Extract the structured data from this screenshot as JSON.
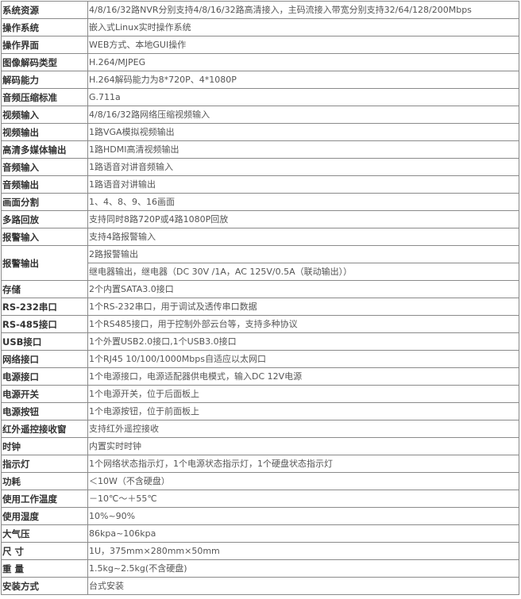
{
  "specs": [
    {
      "label": "系统资源",
      "values": [
        "4/8/16/32路NVR分别支持4/8/16/32路高清接入，主码流接入带宽分别支持32/64/128/200Mbps"
      ]
    },
    {
      "label": "操作系统",
      "values": [
        "嵌入式Linux实时操作系统"
      ]
    },
    {
      "label": "操作界面",
      "values": [
        "WEB方式、本地GUI操作"
      ]
    },
    {
      "label": "图像解码类型",
      "values": [
        "H.264/MJPEG"
      ]
    },
    {
      "label": "解码能力",
      "values": [
        "H.264解码能力为8*720P、4*1080P"
      ]
    },
    {
      "label": "音频压缩标准",
      "values": [
        "G.711a"
      ]
    },
    {
      "label": "视频输入",
      "values": [
        "4/8/16/32路网络压缩视频输入"
      ]
    },
    {
      "label": "视频输出",
      "values": [
        "1路VGA模拟视频输出"
      ]
    },
    {
      "label": "高清多媒体输出",
      "values": [
        "1路HDMI高清视频输出"
      ]
    },
    {
      "label": "音频输入",
      "values": [
        "1路语音对讲音频输入"
      ]
    },
    {
      "label": "音频输出",
      "values": [
        "1路语音对讲输出"
      ]
    },
    {
      "label": "画面分割",
      "values": [
        "1、4、8、9、16画面"
      ]
    },
    {
      "label": "多路回放",
      "values": [
        "支持同时8路720P或4路1080P回放"
      ]
    },
    {
      "label": "报警输入",
      "values": [
        "支持4路报警输入"
      ]
    },
    {
      "label": "报警输出",
      "values": [
        "2路报警输出",
        "继电器输出，继电器（DC 30V /1A，AC 125V/0.5A（联动输出））"
      ]
    },
    {
      "label": "存储",
      "values": [
        "2个内置SATA3.0接口"
      ]
    },
    {
      "label": "RS-232串口",
      "values": [
        "1个RS-232串口，用于调试及透传串口数据"
      ]
    },
    {
      "label": "RS-485接口",
      "values": [
        "1个RS485接口，用于控制外部云台等，支持多种协议"
      ]
    },
    {
      "label": "USB接口",
      "values": [
        "1个外置USB2.0接口,1个USB3.0接口"
      ]
    },
    {
      "label": "网络接口",
      "values": [
        "1个RJ45 10/100/1000Mbps自适应以太网口"
      ]
    },
    {
      "label": "电源接口",
      "values": [
        "1个电源接口，电源适配器供电模式，输入DC 12V电源"
      ]
    },
    {
      "label": "电源开关",
      "values": [
        "1个电源开关，位于后面板上"
      ]
    },
    {
      "label": "电源按钮",
      "values": [
        "1个电源按钮，位于前面板上"
      ]
    },
    {
      "label": "红外遥控接收窗",
      "values": [
        "支持红外遥控接收"
      ]
    },
    {
      "label": "时钟",
      "values": [
        "内置实时时钟"
      ]
    },
    {
      "label": "指示灯",
      "values": [
        "1个网络状态指示灯，1个电源状态指示灯，1个硬盘状态指示灯"
      ]
    },
    {
      "label": "功耗",
      "values": [
        "＜10W（不含硬盘）"
      ]
    },
    {
      "label": "使用工作温度",
      "values": [
        "－10℃～＋55℃"
      ]
    },
    {
      "label": "使用湿度",
      "values": [
        "10%~90%"
      ]
    },
    {
      "label": "大气压",
      "values": [
        "86kpa~106kpa"
      ]
    },
    {
      "label": "尺 寸",
      "values": [
        "1U，375mm×280mm×50mm"
      ]
    },
    {
      "label": "重 量",
      "values": [
        "1.5kg~2.5kg(不含硬盘)"
      ]
    },
    {
      "label": "安装方式",
      "values": [
        "台式安装"
      ]
    }
  ]
}
